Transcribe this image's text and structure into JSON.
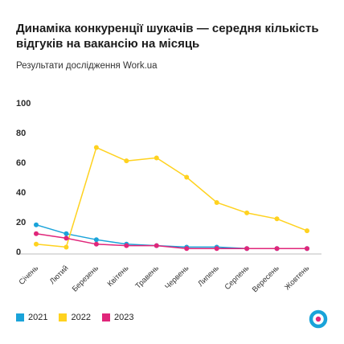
{
  "title": "Динаміка конкуренції шукачів — середня кількість відгуків на вакансію на місяць",
  "subtitle": "Результати дослідження Work.ua",
  "chart_data": {
    "type": "line",
    "categories": [
      "Січень",
      "Лютий",
      "Березень",
      "Квітень",
      "Травень",
      "Червень",
      "Липень",
      "Серпень",
      "Вересень",
      "Жовтень"
    ],
    "yticks": [
      "0",
      "20",
      "40",
      "60",
      "80",
      "100"
    ],
    "ylim": [
      0,
      100
    ],
    "grid": false,
    "legend_position": "bottom-left",
    "series": [
      {
        "name": "2021",
        "color": "#1aa3d9",
        "values": [
          18,
          12,
          8,
          5,
          4,
          3,
          3,
          2,
          2,
          2
        ]
      },
      {
        "name": "2022",
        "color": "#ffd21f",
        "values": [
          5,
          3,
          70,
          61,
          63,
          50,
          33,
          26,
          22,
          14
        ]
      },
      {
        "name": "2023",
        "color": "#e0267a",
        "values": [
          12,
          9,
          5,
          4,
          4,
          2,
          2,
          2,
          2,
          2
        ]
      }
    ]
  },
  "brand_colors": {
    "ring": "#1aa3d9",
    "center": "#e0267a"
  }
}
